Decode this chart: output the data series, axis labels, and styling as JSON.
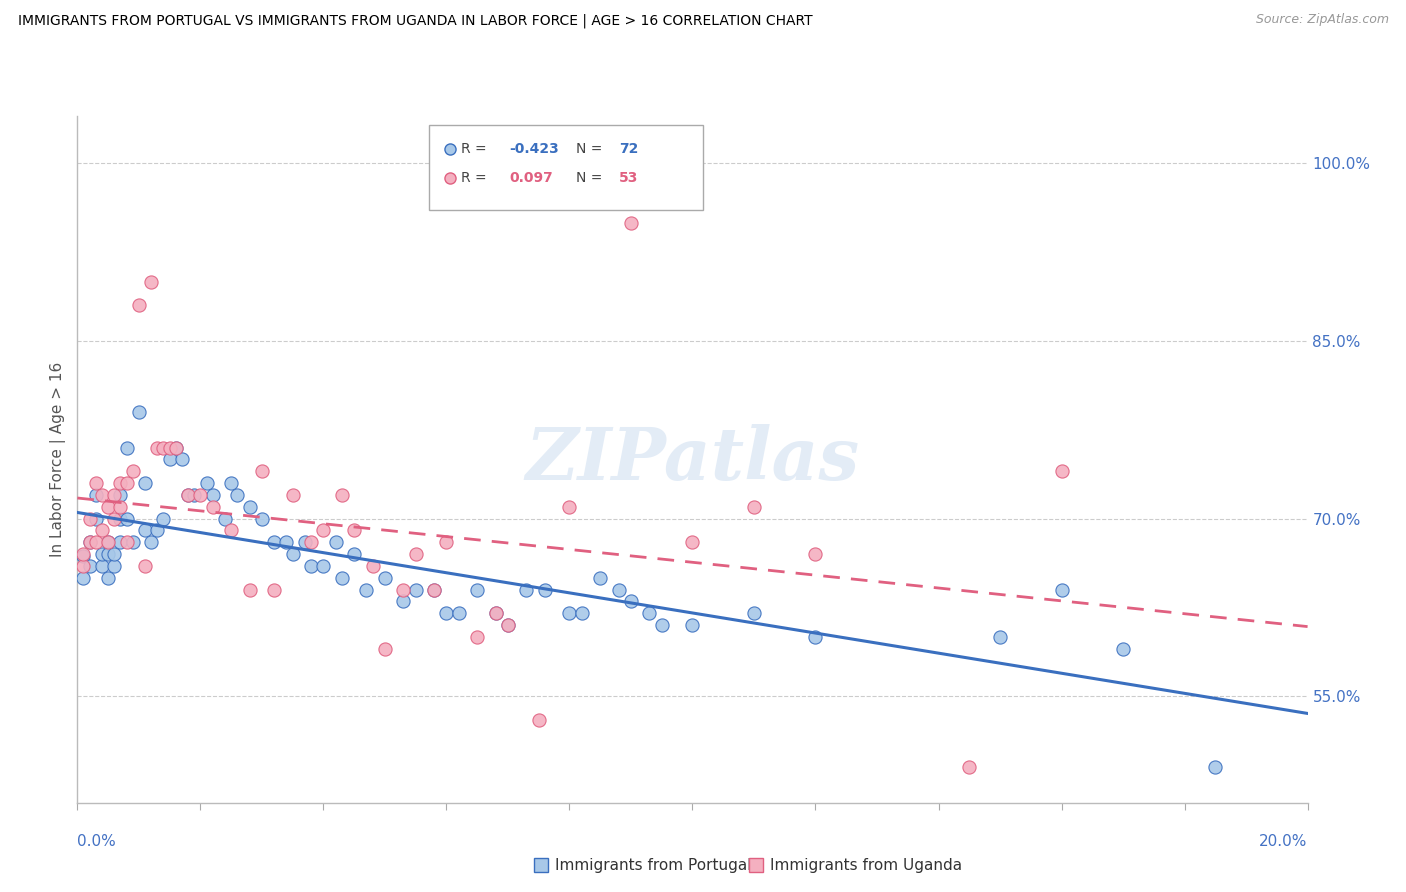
{
  "title": "IMMIGRANTS FROM PORTUGAL VS IMMIGRANTS FROM UGANDA IN LABOR FORCE | AGE > 16 CORRELATION CHART",
  "source": "Source: ZipAtlas.com",
  "ylabel": "In Labor Force | Age > 16",
  "y_tick_labels": [
    "55.0%",
    "70.0%",
    "85.0%",
    "100.0%"
  ],
  "y_tick_values": [
    0.55,
    0.7,
    0.85,
    1.0
  ],
  "xlim": [
    0.0,
    0.2
  ],
  "ylim": [
    0.46,
    1.04
  ],
  "watermark": "ZIPatlas",
  "color_portugal": "#a8c8e8",
  "color_uganda": "#f4b0c0",
  "color_portugal_line": "#3a6fbf",
  "color_uganda_line": "#e06080",
  "color_axis_labels": "#4472c4",
  "portugal_x": [
    0.001,
    0.001,
    0.002,
    0.002,
    0.003,
    0.003,
    0.004,
    0.004,
    0.005,
    0.005,
    0.005,
    0.006,
    0.006,
    0.007,
    0.007,
    0.007,
    0.008,
    0.008,
    0.009,
    0.01,
    0.011,
    0.011,
    0.012,
    0.013,
    0.014,
    0.015,
    0.016,
    0.017,
    0.018,
    0.019,
    0.021,
    0.022,
    0.024,
    0.025,
    0.026,
    0.028,
    0.03,
    0.032,
    0.034,
    0.035,
    0.037,
    0.038,
    0.04,
    0.042,
    0.043,
    0.045,
    0.047,
    0.05,
    0.053,
    0.055,
    0.058,
    0.06,
    0.062,
    0.065,
    0.068,
    0.07,
    0.073,
    0.076,
    0.08,
    0.082,
    0.085,
    0.088,
    0.09,
    0.093,
    0.095,
    0.1,
    0.11,
    0.12,
    0.15,
    0.16,
    0.17,
    0.185
  ],
  "portugal_y": [
    0.668,
    0.65,
    0.66,
    0.68,
    0.72,
    0.7,
    0.66,
    0.67,
    0.68,
    0.65,
    0.67,
    0.66,
    0.67,
    0.7,
    0.68,
    0.72,
    0.76,
    0.7,
    0.68,
    0.79,
    0.69,
    0.73,
    0.68,
    0.69,
    0.7,
    0.75,
    0.76,
    0.75,
    0.72,
    0.72,
    0.73,
    0.72,
    0.7,
    0.73,
    0.72,
    0.71,
    0.7,
    0.68,
    0.68,
    0.67,
    0.68,
    0.66,
    0.66,
    0.68,
    0.65,
    0.67,
    0.64,
    0.65,
    0.63,
    0.64,
    0.64,
    0.62,
    0.62,
    0.64,
    0.62,
    0.61,
    0.64,
    0.64,
    0.62,
    0.62,
    0.65,
    0.64,
    0.63,
    0.62,
    0.61,
    0.61,
    0.62,
    0.6,
    0.6,
    0.64,
    0.59,
    0.49
  ],
  "uganda_x": [
    0.001,
    0.001,
    0.002,
    0.002,
    0.003,
    0.003,
    0.004,
    0.004,
    0.005,
    0.005,
    0.006,
    0.006,
    0.007,
    0.007,
    0.008,
    0.008,
    0.009,
    0.01,
    0.011,
    0.012,
    0.013,
    0.014,
    0.015,
    0.016,
    0.018,
    0.02,
    0.022,
    0.025,
    0.028,
    0.03,
    0.032,
    0.035,
    0.038,
    0.04,
    0.043,
    0.045,
    0.048,
    0.05,
    0.053,
    0.055,
    0.058,
    0.06,
    0.065,
    0.068,
    0.07,
    0.075,
    0.08,
    0.09,
    0.1,
    0.11,
    0.12,
    0.145,
    0.16
  ],
  "uganda_y": [
    0.66,
    0.67,
    0.68,
    0.7,
    0.68,
    0.73,
    0.69,
    0.72,
    0.68,
    0.71,
    0.7,
    0.72,
    0.71,
    0.73,
    0.68,
    0.73,
    0.74,
    0.88,
    0.66,
    0.9,
    0.76,
    0.76,
    0.76,
    0.76,
    0.72,
    0.72,
    0.71,
    0.69,
    0.64,
    0.74,
    0.64,
    0.72,
    0.68,
    0.69,
    0.72,
    0.69,
    0.66,
    0.59,
    0.64,
    0.67,
    0.64,
    0.68,
    0.6,
    0.62,
    0.61,
    0.53,
    0.71,
    0.95,
    0.68,
    0.71,
    0.67,
    0.49,
    0.74
  ]
}
